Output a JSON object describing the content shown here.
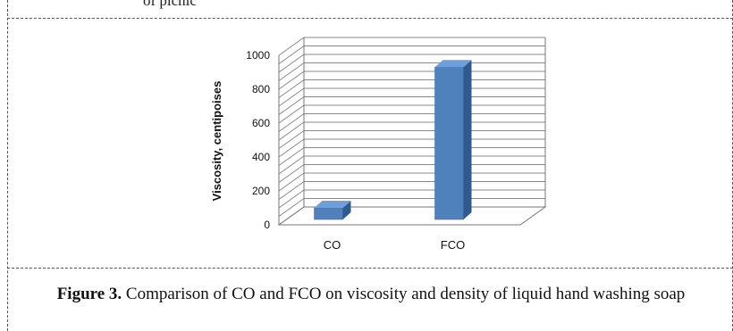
{
  "page": {
    "cut_off_text": "of     picnic",
    "caption_label": "Figure 3.",
    "caption_text": "Comparison of CO and FCO on viscosity and density of liquid hand washing soap"
  },
  "chart_data": {
    "type": "bar",
    "title": "",
    "xlabel": "",
    "ylabel": "Viscosity, centipoises",
    "categories": [
      "CO",
      "FCO"
    ],
    "values": [
      100,
      930
    ],
    "ylim": [
      0,
      1000
    ],
    "yticks": [
      0,
      200,
      400,
      600,
      800,
      1000
    ],
    "grid": true,
    "style": "3d-column",
    "colors": {
      "bar_front": "#4f81bd",
      "bar_side": "#2f5a8f",
      "bar_top": "#6f9fd8",
      "grid": "#888888"
    }
  }
}
